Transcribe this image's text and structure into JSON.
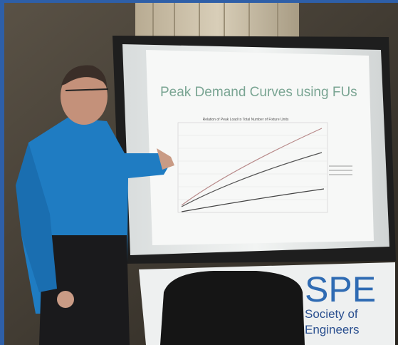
{
  "slide": {
    "title": "Peak Demand Curves using FUs",
    "chart_title": "Relation of Peak Load to Total Number of Fixture Units"
  },
  "banner": {
    "logo": "SPE",
    "line1": "Society of",
    "line2": "Engineers"
  }
}
